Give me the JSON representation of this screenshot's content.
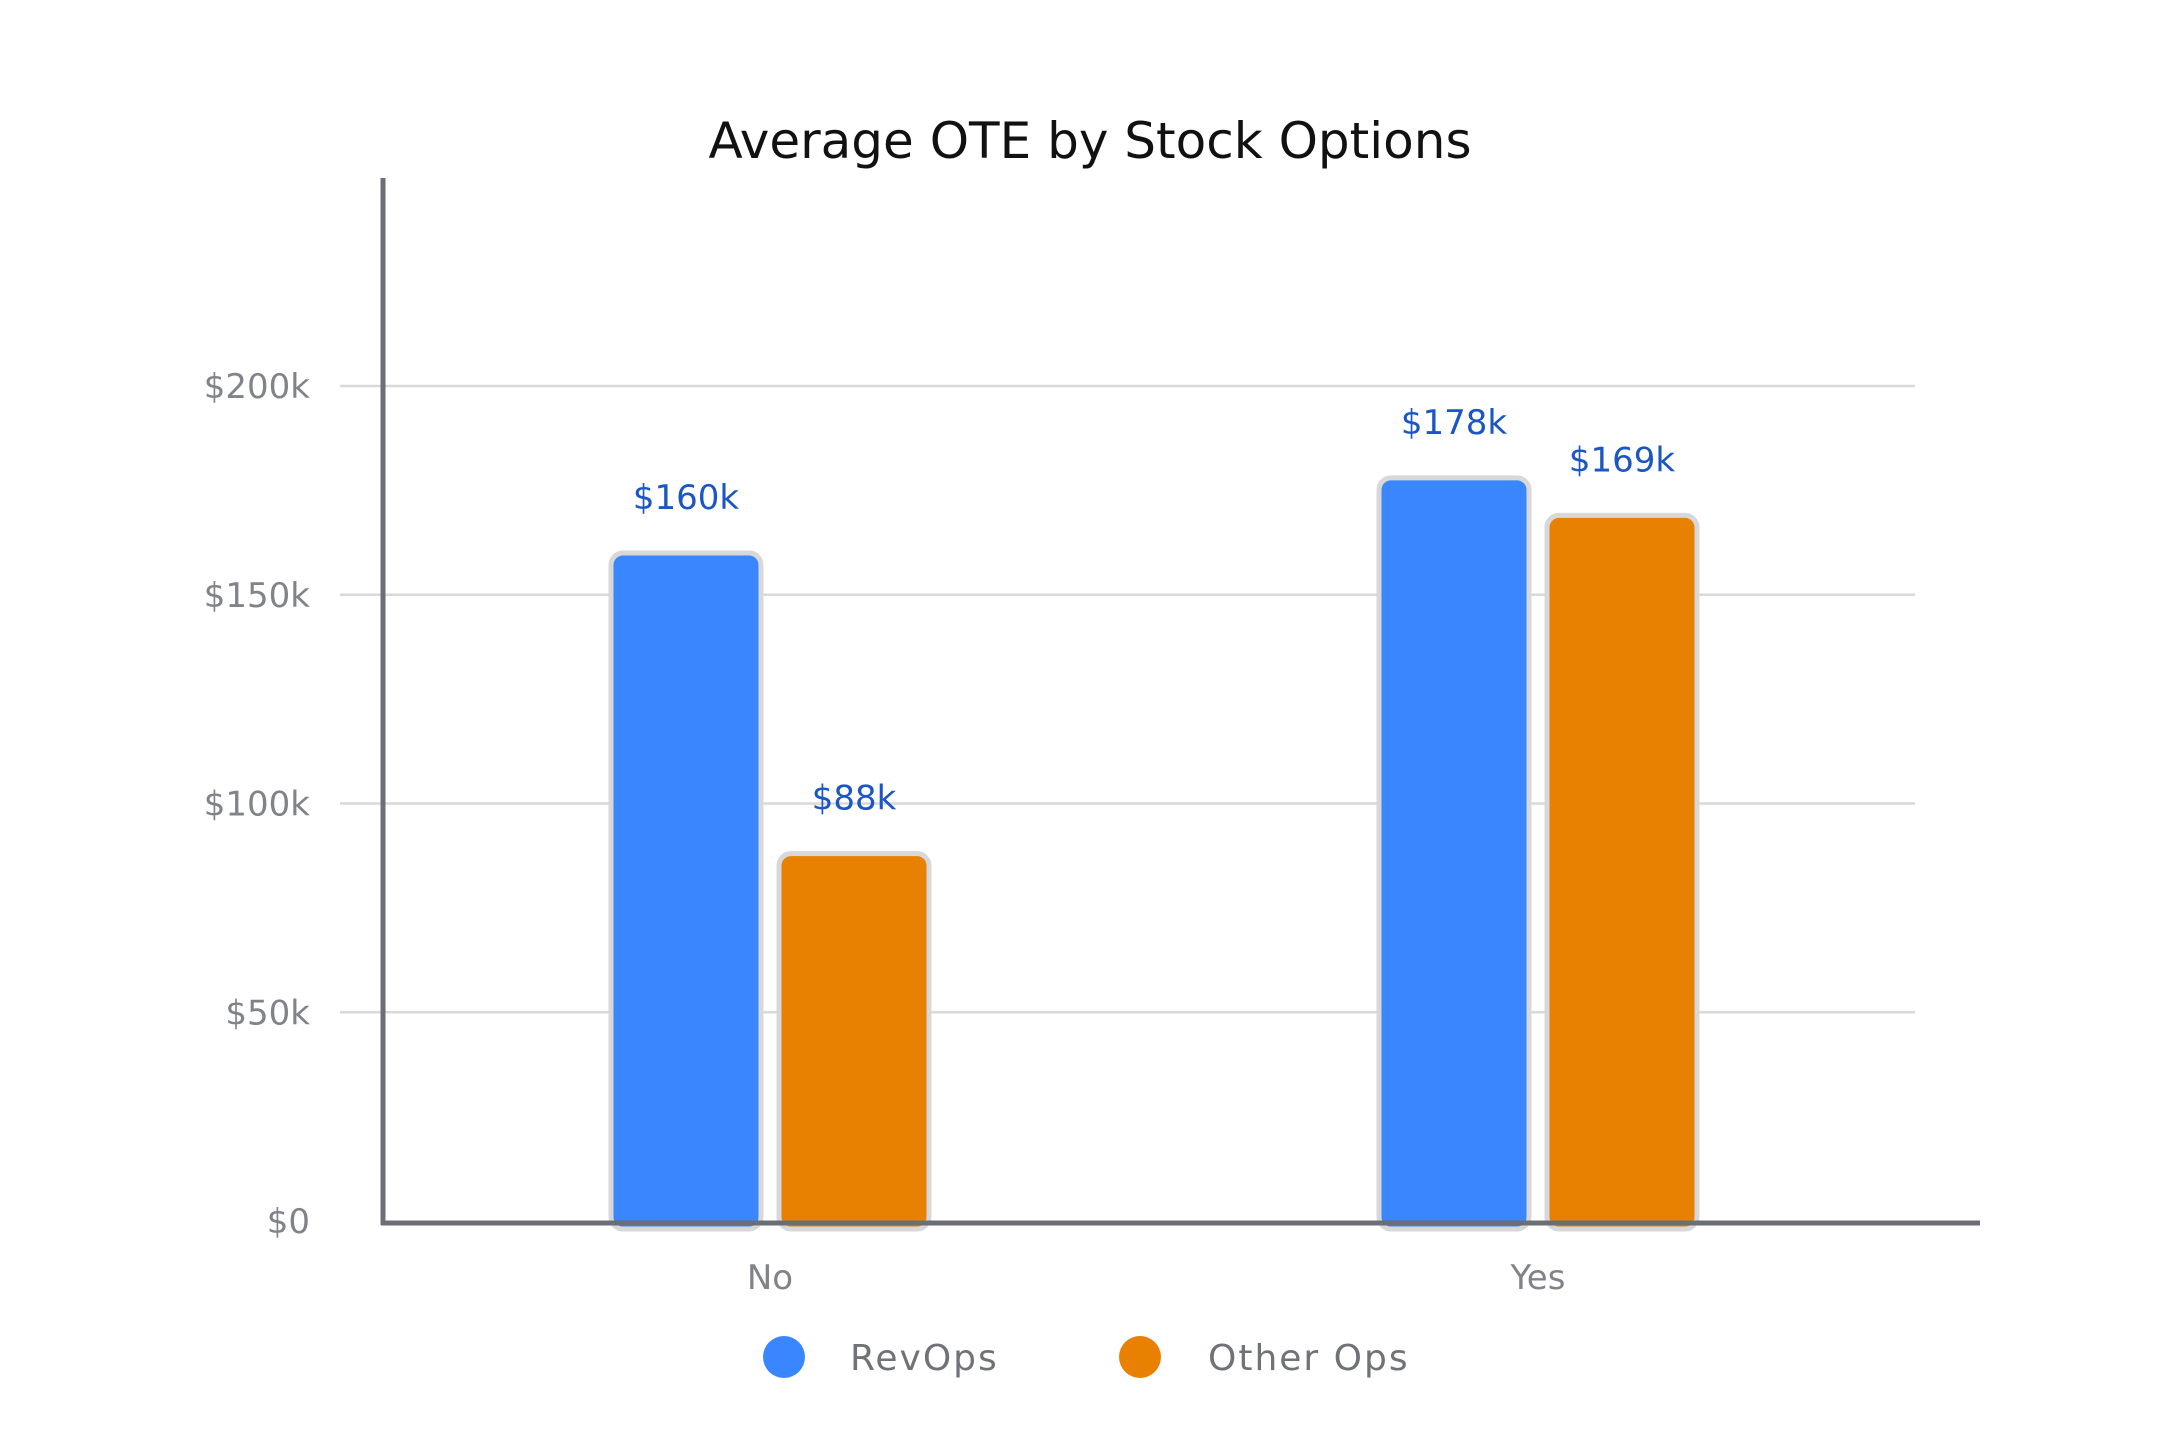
{
  "chart_data": {
    "type": "bar",
    "title": "Average OTE by Stock Options",
    "categories": [
      "No",
      "Yes"
    ],
    "series": [
      {
        "name": "RevOps",
        "values": [
          160,
          178
        ],
        "data_labels": [
          "$160k",
          "$178k"
        ],
        "color": "#3a86ff"
      },
      {
        "name": "Other Ops",
        "values": [
          88,
          169
        ],
        "data_labels": [
          "$88k",
          "$169k"
        ],
        "color": "#e88102"
      }
    ],
    "y_ticks": [
      {
        "value": 0,
        "label": "$0"
      },
      {
        "value": 50,
        "label": "$50k"
      },
      {
        "value": 100,
        "label": "$100k"
      },
      {
        "value": 150,
        "label": "$150k"
      },
      {
        "value": 200,
        "label": "$200k"
      }
    ],
    "ylim": [
      0,
      250
    ],
    "xlabel": "",
    "ylabel": "",
    "grid": true,
    "legend_position": "bottom",
    "data_label_color": "#1a56c4",
    "axis_color": "#6b6f75",
    "grid_color": "#d9d9d9",
    "bar_border_color": "#d8d8d8"
  }
}
